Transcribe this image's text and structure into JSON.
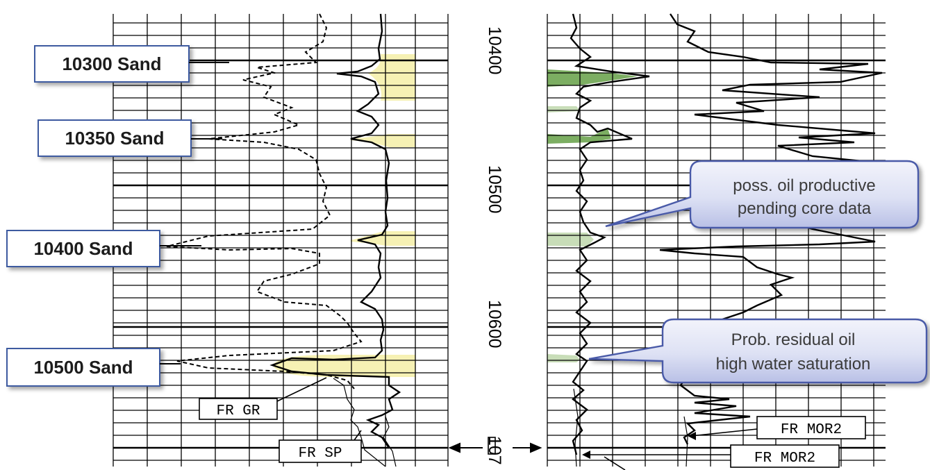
{
  "sand_labels": [
    "10300 Sand",
    "10350 Sand",
    "10400 Sand",
    "10500 Sand"
  ],
  "depth_labels": [
    "10400",
    "10500",
    "10600",
    "107"
  ],
  "curve_labels": {
    "gr": "FR  GR",
    "sp": "FR  SP",
    "mor2_a": "FR  MOR2",
    "mor2_b": "FR  MOR2"
  },
  "callouts": {
    "oil_productive": {
      "line1": "poss. oil productive",
      "line2": "pending core data"
    },
    "residual_oil": {
      "line1": "Prob. residual oil",
      "line2": "high water saturation"
    }
  },
  "colors": {
    "sand_fill": "#f6f1b4",
    "resistivity_fill": "#7cae62",
    "resistivity_fill_light": "#c8ddb8",
    "callout_fill": "#dfe3f5",
    "callout_border": "#4a5aa8",
    "curve": "#000000",
    "grid": "#000000"
  }
}
